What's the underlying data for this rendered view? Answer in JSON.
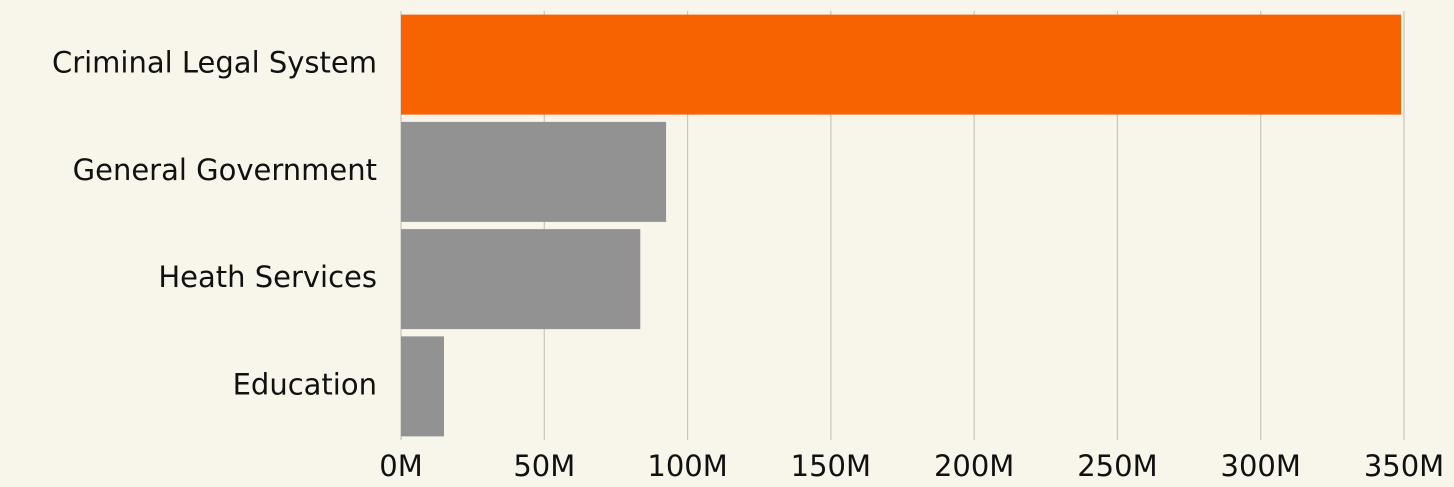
{
  "chart_data": {
    "type": "bar",
    "orientation": "horizontal",
    "categories": [
      "Criminal Legal System",
      "General Government",
      "Heath Services",
      "Education"
    ],
    "values": [
      349000000,
      92500000,
      83500000,
      15000000
    ],
    "colors": [
      "#f76300",
      "#939292",
      "#939292",
      "#939292"
    ],
    "xlim": [
      0,
      350000000
    ],
    "xticks": [
      {
        "value": 0,
        "label": "0M"
      },
      {
        "value": 50000000,
        "label": "50M"
      },
      {
        "value": 100000000,
        "label": "100M"
      },
      {
        "value": 150000000,
        "label": "150M"
      },
      {
        "value": 200000000,
        "label": "200M"
      },
      {
        "value": 250000000,
        "label": "250M"
      },
      {
        "value": 300000000,
        "label": "300M"
      },
      {
        "value": 350000000,
        "label": "350M"
      }
    ],
    "grid": true
  }
}
